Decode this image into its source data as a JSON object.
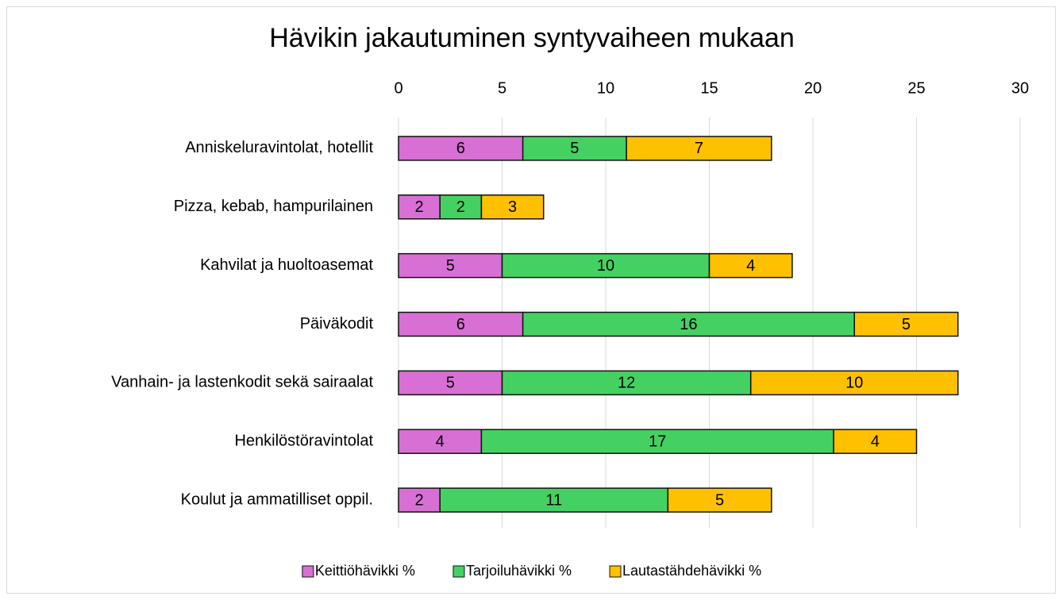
{
  "chart_data": {
    "type": "bar",
    "orientation": "horizontal",
    "stacked": true,
    "title": "Hävikin jakautuminen syntyvaiheen mukaan",
    "categories": [
      "Anniskeluravintolat, hotellit",
      "Pizza, kebab, hampurilainen",
      "Kahvilat ja huoltoasemat",
      "Päiväkodit",
      "Vanhain- ja lastenkodit sekä sairaalat",
      "Henkilöstöravintolat",
      "Koulut ja ammatilliset oppil."
    ],
    "series": [
      {
        "name": "Keittiöhävikki %",
        "color": "#d86fd4",
        "values": [
          6,
          2,
          5,
          6,
          5,
          4,
          2
        ]
      },
      {
        "name": "Tarjoiluhävikki %",
        "color": "#44d162",
        "values": [
          5,
          2,
          10,
          16,
          12,
          17,
          11
        ]
      },
      {
        "name": "Lautastähdehävikki %",
        "color": "#ffc000",
        "values": [
          7,
          3,
          4,
          5,
          10,
          4,
          5
        ]
      }
    ],
    "xlim": [
      0,
      30
    ],
    "xticks": [
      0,
      5,
      10,
      15,
      20,
      25,
      30
    ],
    "grid": true,
    "legend": "bottom"
  }
}
